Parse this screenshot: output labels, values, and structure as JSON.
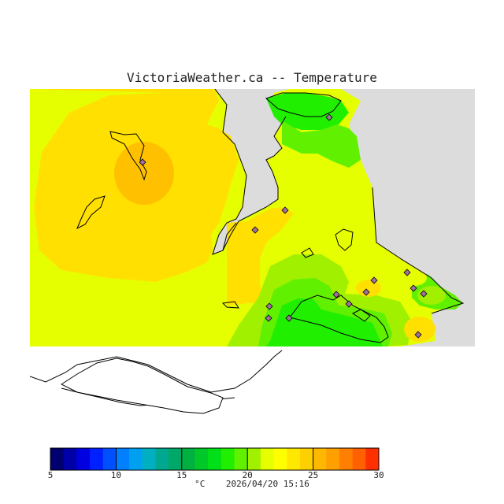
{
  "title": "VictoriaWeather.ca -- Temperature",
  "footer": {
    "unit": "°C",
    "timestamp": "2026/04/20 15:16"
  },
  "legend": {
    "min": 5,
    "max": 30,
    "step": 1,
    "tick_labels": [
      "5",
      "10",
      "15",
      "20",
      "25",
      "30"
    ],
    "tick_values": [
      5,
      10,
      15,
      20,
      25,
      30
    ],
    "colors": [
      "#000070",
      "#0000a8",
      "#0000e0",
      "#0020ff",
      "#0050ff",
      "#0080ff",
      "#00a0f0",
      "#00b0c0",
      "#00a890",
      "#00a868",
      "#00b040",
      "#00c828",
      "#00e018",
      "#20f000",
      "#60f000",
      "#a0f000",
      "#e6ff00",
      "#ffff00",
      "#ffe800",
      "#ffd000",
      "#ffb800",
      "#ffa000",
      "#ff8000",
      "#ff6000",
      "#ff3000"
    ]
  },
  "colors": {
    "band_22_23": "#e6ff00",
    "band_23_24": "#ffe800",
    "band_24_25": "#ffcc00",
    "band_21_22": "#a0f000",
    "band_20_21": "#60f000",
    "band_19_20": "#20f000",
    "land_masked": "#dcdcdc",
    "water_masked": "#ffffff"
  }
}
